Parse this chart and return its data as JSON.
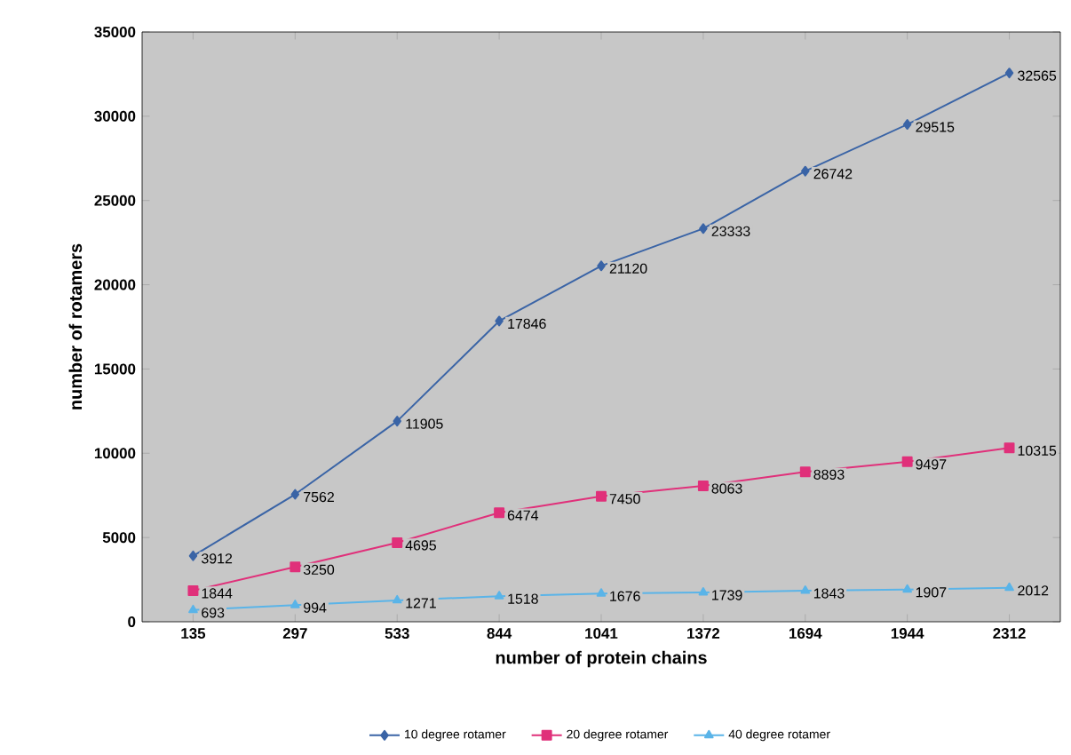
{
  "chart_data": {
    "type": "line",
    "xlabel": "number of protein chains",
    "ylabel": "number of rotamers",
    "categories": [
      "135",
      "297",
      "533",
      "844",
      "1041",
      "1372",
      "1694",
      "1944",
      "2312"
    ],
    "series": [
      {
        "name": "10 degree rotamer",
        "color": "#3a64a6",
        "marker": "diamond",
        "values": [
          3912,
          7562,
          11905,
          17846,
          21120,
          23333,
          26742,
          29515,
          32565
        ]
      },
      {
        "name": "20 degree rotamer",
        "color": "#e0307a",
        "marker": "square",
        "values": [
          1844,
          3250,
          4695,
          6474,
          7450,
          8063,
          8893,
          9497,
          10315
        ]
      },
      {
        "name": "40 degree rotamer",
        "color": "#5ab4e8",
        "marker": "triangle",
        "values": [
          693,
          994,
          1271,
          1518,
          1676,
          1739,
          1843,
          1907,
          2012
        ]
      }
    ],
    "ylim": [
      0,
      35000
    ],
    "yticks": [
      0,
      5000,
      10000,
      15000,
      20000,
      25000,
      30000,
      35000
    ],
    "grid": false,
    "legend": "bottom",
    "data_labels": true,
    "line_style": "solid"
  }
}
